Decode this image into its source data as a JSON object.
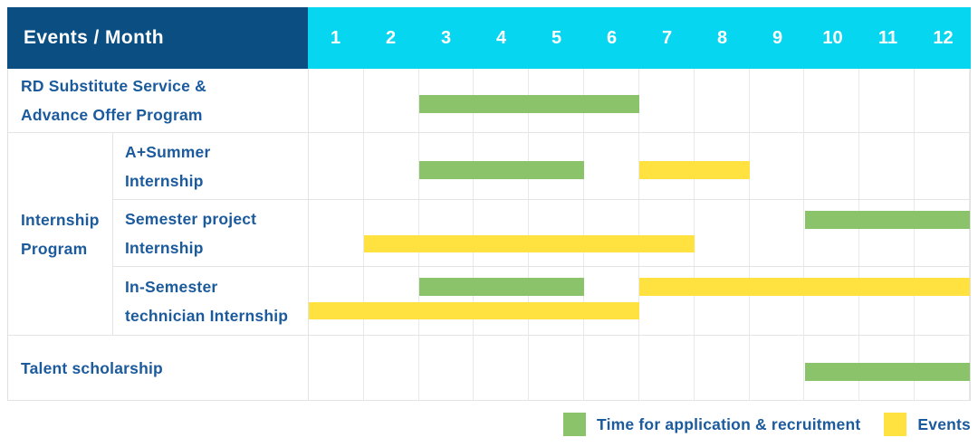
{
  "header": {
    "title": "Events / Month",
    "months": [
      "1",
      "2",
      "3",
      "4",
      "5",
      "6",
      "7",
      "8",
      "9",
      "10",
      "11",
      "12"
    ]
  },
  "colors": {
    "header_bg": "#0A4E82",
    "months_bg": "#06D6F0",
    "recruitment": "#8BC36B",
    "events": "#FFE23F",
    "label_text": "#1B5A9C"
  },
  "chart_data": {
    "type": "table",
    "subtype": "gantt",
    "x_unit": "month",
    "x_range": [
      1,
      12
    ],
    "group_label": "Internship\nProgram",
    "rows": [
      {
        "label": "RD Substitute Service &\nAdvance Offer Program",
        "group": null,
        "bars": [
          {
            "type": "recruitment",
            "start": 3,
            "end": 6,
            "lane": 0
          }
        ]
      },
      {
        "label": "A+Summer\nInternship",
        "group": "Internship Program",
        "bars": [
          {
            "type": "recruitment",
            "start": 3,
            "end": 5,
            "lane": 0
          },
          {
            "type": "events",
            "start": 7,
            "end": 8,
            "lane": 0
          }
        ]
      },
      {
        "label": "Semester project\nInternship",
        "group": "Internship Program",
        "bars": [
          {
            "type": "recruitment",
            "start": 10,
            "end": 12,
            "lane": 0
          },
          {
            "type": "events",
            "start": 2,
            "end": 7,
            "lane": 1
          }
        ]
      },
      {
        "label": "In-Semester\ntechnician Internship",
        "group": "Internship Program",
        "bars": [
          {
            "type": "recruitment",
            "start": 3,
            "end": 5,
            "lane": 0
          },
          {
            "type": "events",
            "start": 7,
            "end": 12,
            "lane": 0
          },
          {
            "type": "events",
            "start": 1,
            "end": 6,
            "lane": 1
          }
        ]
      },
      {
        "label": "Talent scholarship",
        "group": null,
        "bars": [
          {
            "type": "recruitment",
            "start": 10,
            "end": 12,
            "lane": 0
          }
        ]
      }
    ],
    "legend": [
      {
        "key": "recruitment",
        "label": "Time for application & recruitment",
        "color": "#8BC36B"
      },
      {
        "key": "events",
        "label": "Events",
        "color": "#FFE23F"
      }
    ]
  }
}
